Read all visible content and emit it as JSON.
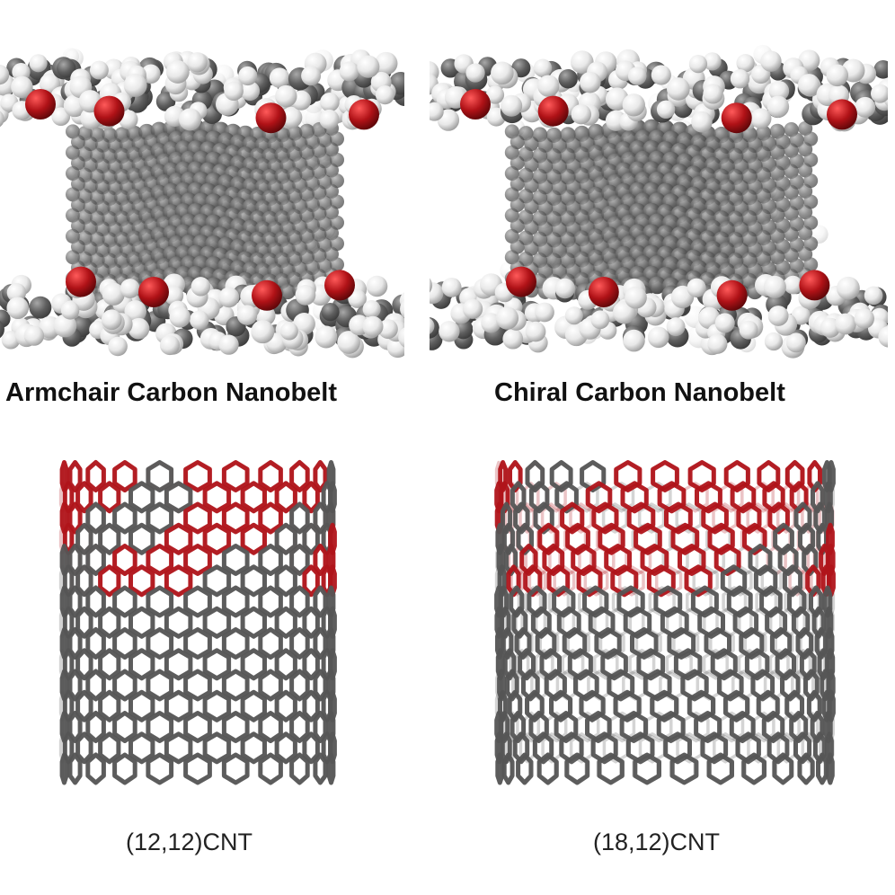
{
  "figures": [
    {
      "title": "Armchair Carbon Nanobelt",
      "caption": "(12,12)CNT",
      "belt_type": "armchair"
    },
    {
      "title": "Chiral Carbon Nanobelt",
      "caption": "(18,12)CNT",
      "belt_type": "chiral"
    }
  ],
  "colors": {
    "carbon": "#5f5f5f",
    "carbon_dark": "#3a3a3a",
    "hydrogen": "#e8e8e8",
    "oxygen": "#b01217",
    "belt_highlight": "#b0141a",
    "tube": "#555555"
  }
}
